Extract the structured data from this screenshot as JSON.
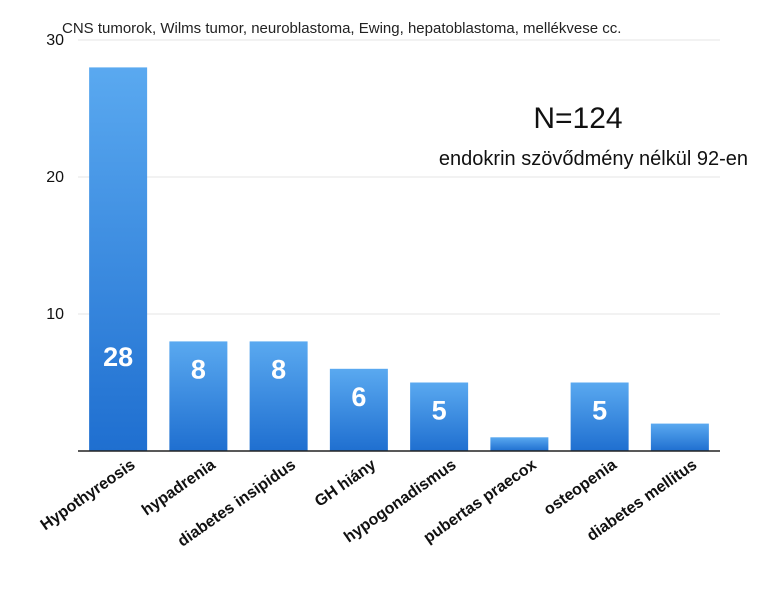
{
  "chart_data": {
    "type": "bar",
    "subtitle": "CNS tumorok, Wilms tumor, neuroblastoma, Ewing, hepatoblastoma, mellékvese cc.",
    "categories": [
      "Hypothyreosis",
      "hypadrenia",
      "diabetes insipidus",
      "GH hiány",
      "hypogonadismus",
      "pubertas praecox",
      "osteopenia",
      "diabetes mellitus"
    ],
    "values": [
      28,
      8,
      8,
      6,
      5,
      1,
      5,
      2
    ],
    "data_labels": [
      "28",
      "8",
      "8",
      "6",
      "5",
      "",
      "5",
      ""
    ],
    "yticks": [
      "10",
      "20",
      "30"
    ],
    "ylim": [
      0,
      30
    ],
    "grid": true,
    "colors": {
      "bar_top": "#5aa9f0",
      "bar_bottom": "#1f6fd0",
      "grid": "#e6e6e6",
      "axis": "#222222"
    },
    "annotations": {
      "n": "N=124",
      "note": "endokrin szövődmény nélkül 92-en"
    }
  }
}
